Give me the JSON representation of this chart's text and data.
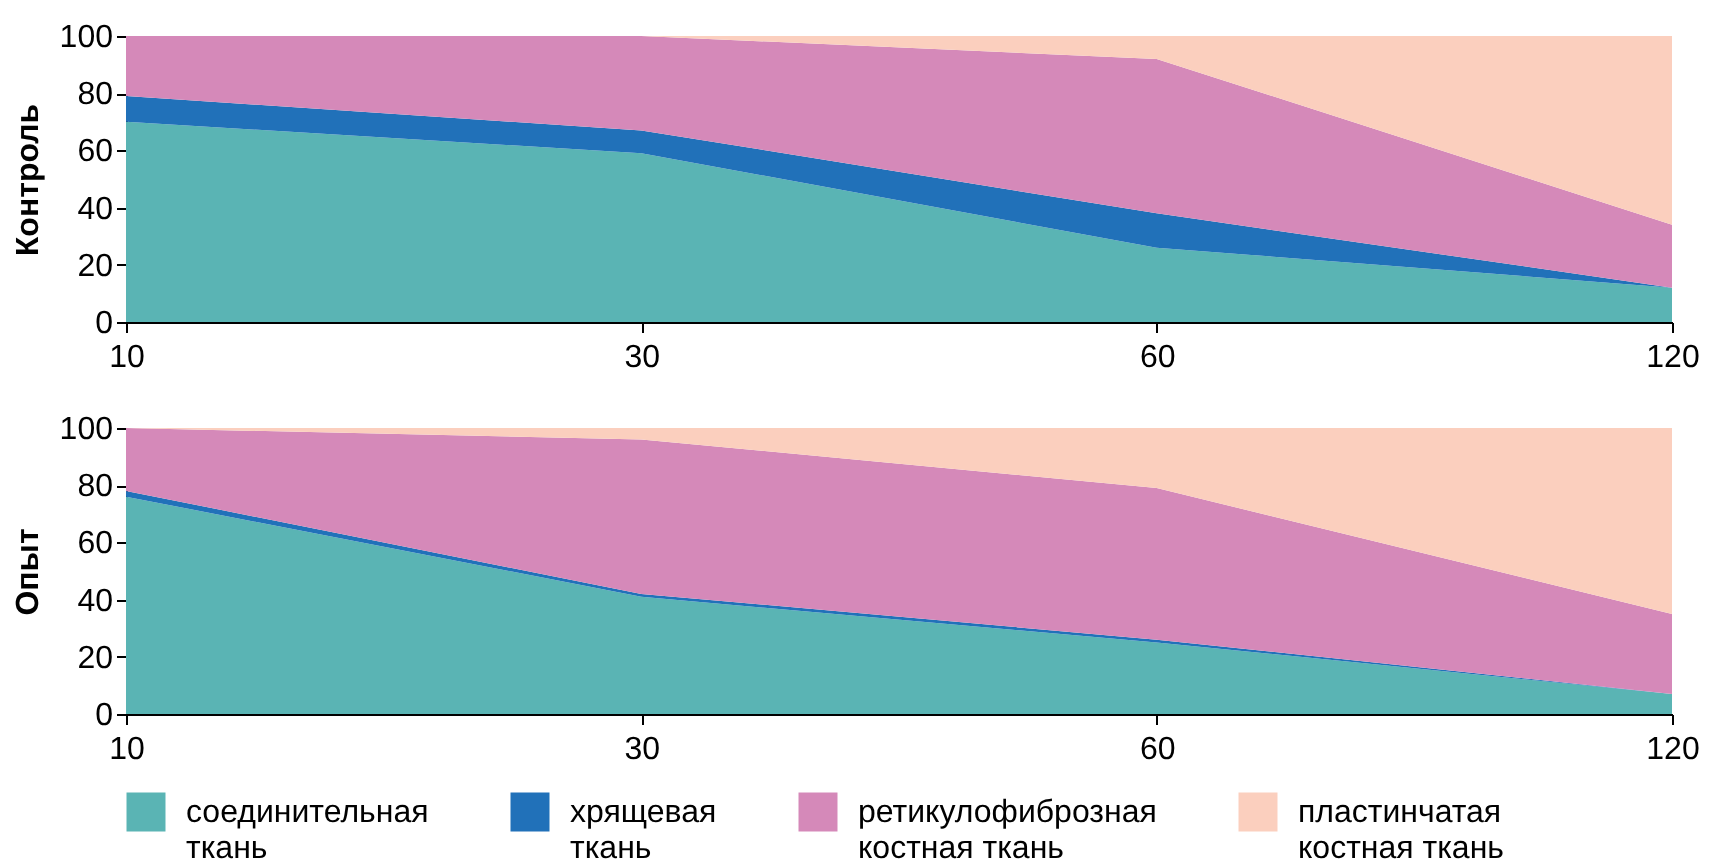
{
  "chart_data": [
    {
      "type": "area",
      "ylabel": "Контроль",
      "categories": [
        "10",
        "30",
        "60",
        "120"
      ],
      "stacked": true,
      "legend": "bottom",
      "ylim": [
        0,
        100
      ],
      "yticks": [
        0,
        20,
        40,
        60,
        80,
        100
      ],
      "series": [
        {
          "name": "соединительная ткань",
          "color": "#5ab4b4",
          "values": [
            70,
            59,
            26,
            12
          ]
        },
        {
          "name": "хрящевая ткань",
          "color": "#2171b9",
          "values": [
            9,
            8,
            12,
            0
          ]
        },
        {
          "name": "ретикулофиброзная костная ткань",
          "color": "#d589b9",
          "values": [
            21,
            33,
            54,
            22
          ]
        },
        {
          "name": "пластинчатая костная ткань",
          "color": "#fbcfbe",
          "values": [
            0,
            0,
            8,
            66
          ]
        }
      ]
    },
    {
      "type": "area",
      "ylabel": "Опыт",
      "categories": [
        "10",
        "30",
        "60",
        "120"
      ],
      "stacked": true,
      "ylim": [
        0,
        100
      ],
      "yticks": [
        0,
        20,
        40,
        60,
        80,
        100
      ],
      "legend": "bottom",
      "series": [
        {
          "name": "соединительная ткань",
          "color": "#5ab4b4",
          "values": [
            76,
            41,
            25,
            7
          ]
        },
        {
          "name": "хрящевая ткань",
          "color": "#2171b9",
          "values": [
            2,
            1,
            1,
            0
          ]
        },
        {
          "name": "ретикулофиброзная костная ткань",
          "color": "#d589b9",
          "values": [
            22,
            54,
            53,
            28
          ]
        },
        {
          "name": "пластинчатая костная ткань",
          "color": "#fbcfbe",
          "values": [
            0,
            4,
            21,
            65
          ]
        }
      ]
    }
  ]
}
